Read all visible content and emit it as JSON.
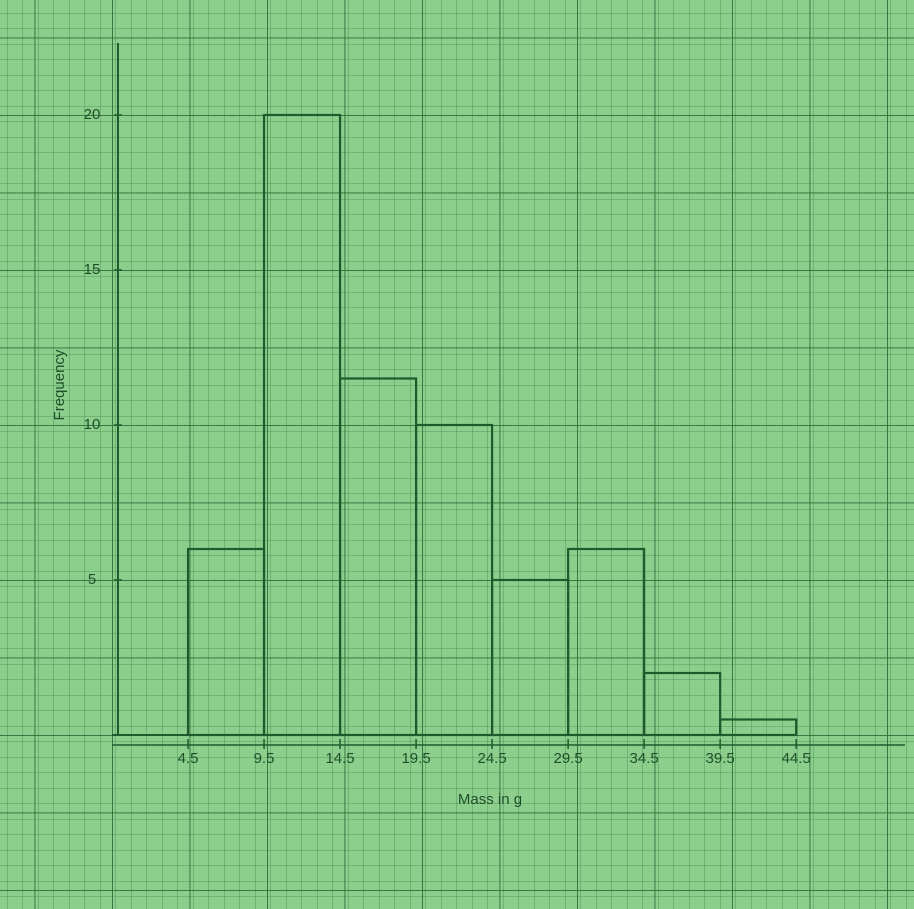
{
  "chart_data": {
    "type": "histogram",
    "x_label": "Mass in g",
    "y_label": "Frequency",
    "bins": [
      4.5,
      9.5,
      14.5,
      19.5,
      24.5,
      29.5,
      34.5,
      39.5,
      44.5
    ],
    "values": [
      6,
      20,
      11.5,
      10,
      5,
      6,
      2,
      0.5
    ],
    "xlim": [
      -0.5,
      51
    ],
    "ylim": [
      0,
      22
    ],
    "yticks": [
      5,
      10,
      15,
      20
    ],
    "color": "#1f5a2c",
    "grid": true
  }
}
